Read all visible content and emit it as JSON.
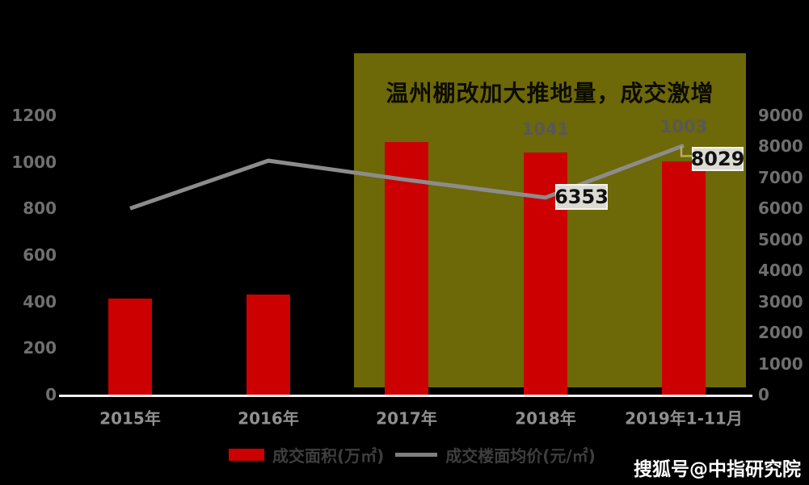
{
  "chart_data": {
    "type": "bar",
    "subtype": "combo-bar-line",
    "title": "温州棚改加大推地量，成交激增",
    "categories": [
      "2015年",
      "2016年",
      "2017年",
      "2018年",
      "2019年1-11月"
    ],
    "series": [
      {
        "name": "成交面积(万㎡)",
        "type": "bar",
        "axis": "left",
        "values": [
          413,
          429,
          1086,
          1041,
          1003
        ]
      },
      {
        "name": "成交楼面均价(元/㎡)",
        "type": "line",
        "axis": "right",
        "values": [
          6000,
          7540,
          6925,
          6353,
          8029
        ]
      }
    ],
    "bar_data_labels": [
      {
        "index": 3,
        "text": "1041"
      },
      {
        "index": 4,
        "text": "1003"
      }
    ],
    "line_data_labels": [
      {
        "index": 3,
        "text": "6353"
      },
      {
        "index": 4,
        "text": "8029"
      }
    ],
    "left_axis": {
      "min": 0,
      "max": 1200,
      "step": 200,
      "ticks": [
        "1200",
        "1000",
        "800",
        "600",
        "400",
        "200",
        "0"
      ]
    },
    "right_axis": {
      "min": 0,
      "max": 9000,
      "step": 1000,
      "ticks": [
        "9000",
        "8000",
        "7000",
        "6000",
        "5000",
        "4000",
        "3000",
        "2000",
        "1000",
        "0"
      ]
    },
    "grid": false,
    "legend_position": "bottom"
  },
  "legend": {
    "bar_label": "成交面积(万㎡)",
    "line_label": "成交楼面均价(元/㎡)"
  },
  "footer": {
    "watermark": "搜狐号@中指研究院"
  },
  "colors": {
    "background": "#000000",
    "bar": "#cc0000",
    "line": "#8c8c8c",
    "highlight_box": "#6d6808",
    "title_text": "#0d0c00",
    "tick_text": "#6f6f6f",
    "category_text": "#8f8f8f",
    "data_label_text": "#585858",
    "label_box_bg": "#dcdbd3",
    "label_box_text": "#111111",
    "callout_line": "#b5ae5e",
    "axis_line": "#f2f2f2",
    "legend_text": "#3e3e3e",
    "watermark_text": "#ffffff"
  }
}
